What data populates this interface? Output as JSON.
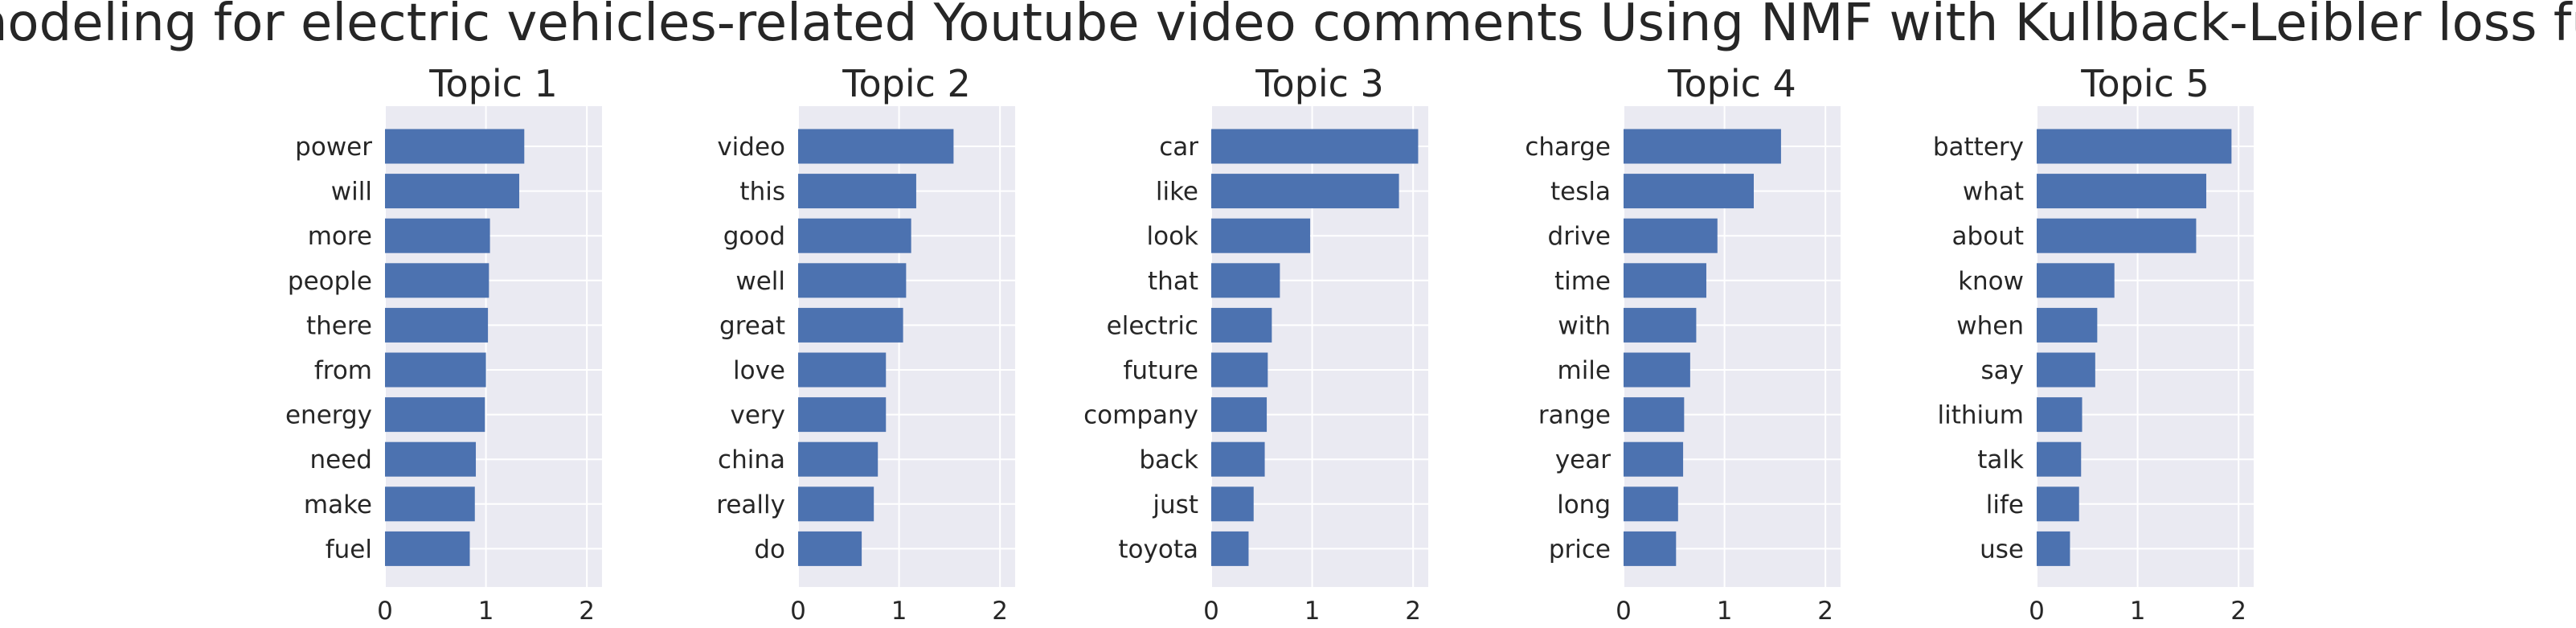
{
  "figure": {
    "title": "Topic modeling for electric vehicles-related Youtube video comments Using NMF with Kullback-Leibler loss function"
  },
  "colors": {
    "bar": "#4c72b0",
    "plot_bg": "#eaeaf2",
    "grid": "#ffffff",
    "text": "#262626"
  },
  "chart_data": [
    {
      "type": "bar",
      "orientation": "horizontal",
      "title": "Topic 1",
      "categories": [
        "power",
        "will",
        "more",
        "people",
        "there",
        "from",
        "energy",
        "need",
        "make",
        "fuel"
      ],
      "values": [
        1.38,
        1.33,
        1.04,
        1.03,
        1.02,
        1.0,
        0.99,
        0.9,
        0.89,
        0.84
      ],
      "xlim": [
        0,
        2.15
      ],
      "xticks": [
        "0",
        "1",
        "2"
      ],
      "grid": true
    },
    {
      "type": "bar",
      "orientation": "horizontal",
      "title": "Topic 2",
      "categories": [
        "video",
        "this",
        "good",
        "well",
        "great",
        "love",
        "very",
        "china",
        "really",
        "do"
      ],
      "values": [
        1.54,
        1.17,
        1.12,
        1.07,
        1.04,
        0.87,
        0.87,
        0.79,
        0.75,
        0.63
      ],
      "xlim": [
        0,
        2.15
      ],
      "xticks": [
        "0",
        "1",
        "2"
      ],
      "grid": true
    },
    {
      "type": "bar",
      "orientation": "horizontal",
      "title": "Topic 3",
      "categories": [
        "car",
        "like",
        "look",
        "that",
        "electric",
        "future",
        "company",
        "back",
        "just",
        "toyota"
      ],
      "values": [
        2.05,
        1.86,
        0.98,
        0.68,
        0.6,
        0.56,
        0.55,
        0.53,
        0.42,
        0.37
      ],
      "xlim": [
        0,
        2.15
      ],
      "xticks": [
        "0",
        "1",
        "2"
      ],
      "grid": true
    },
    {
      "type": "bar",
      "orientation": "horizontal",
      "title": "Topic 4",
      "categories": [
        "charge",
        "tesla",
        "drive",
        "time",
        "with",
        "mile",
        "range",
        "year",
        "long",
        "price"
      ],
      "values": [
        1.56,
        1.29,
        0.93,
        0.82,
        0.72,
        0.66,
        0.6,
        0.59,
        0.54,
        0.52
      ],
      "xlim": [
        0,
        2.15
      ],
      "xticks": [
        "0",
        "1",
        "2"
      ],
      "grid": true
    },
    {
      "type": "bar",
      "orientation": "horizontal",
      "title": "Topic 5",
      "categories": [
        "battery",
        "what",
        "about",
        "know",
        "when",
        "say",
        "lithium",
        "talk",
        "life",
        "use"
      ],
      "values": [
        1.93,
        1.68,
        1.58,
        0.77,
        0.6,
        0.58,
        0.45,
        0.44,
        0.42,
        0.33
      ],
      "xlim": [
        0,
        2.15
      ],
      "xticks": [
        "0",
        "1",
        "2"
      ],
      "grid": true
    }
  ]
}
